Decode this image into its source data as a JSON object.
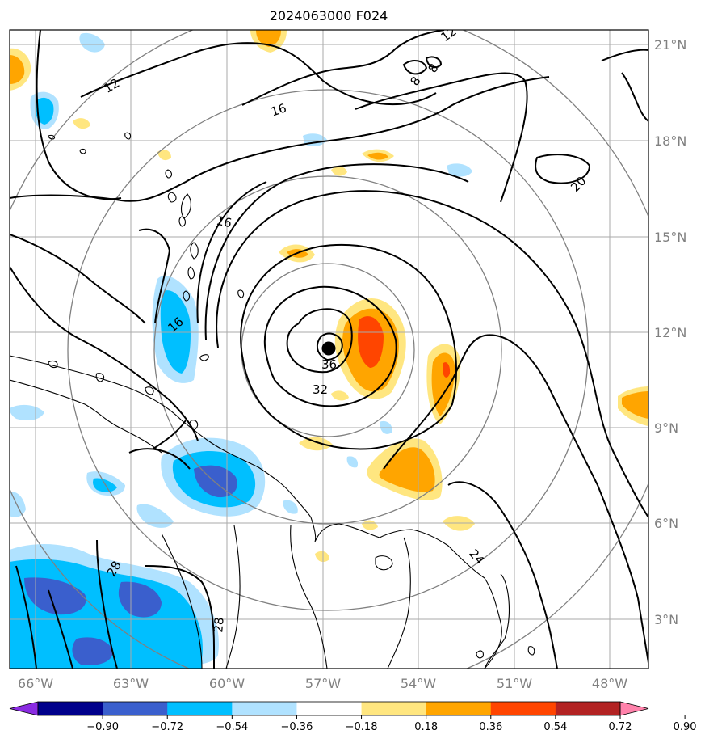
{
  "title": "2024063000 F024",
  "lat_labels": [
    "21°N",
    "18°N",
    "15°N",
    "12°N",
    "9°N",
    "6°N",
    "3°N"
  ],
  "lon_labels": [
    "66°W",
    "63°W",
    "60°W",
    "57°W",
    "54°W",
    "51°W",
    "48°W"
  ],
  "contour_labels": [
    "12",
    "16",
    "16",
    "16",
    "8",
    "8",
    "20",
    "32",
    "36",
    "24",
    "28",
    "28",
    "12"
  ],
  "colorbar": {
    "ticks": [
      "−0.90",
      "−0.72",
      "−0.54",
      "−0.36",
      "−0.18",
      "0.18",
      "0.36",
      "0.54",
      "0.72",
      "0.90"
    ],
    "colors": [
      "#8a2be2",
      "#00008b",
      "#3a5fcd",
      "#00bfff",
      "#b0e2ff",
      "#ffffff",
      "#ffe680",
      "#ffa500",
      "#ff4500",
      "#b22222",
      "#ff82ab"
    ]
  },
  "colors": {
    "grid": "#aaaaaa",
    "range_rings": "#808080",
    "contour": "#000000",
    "coast": "#000000",
    "storm_center": "#000000"
  }
}
